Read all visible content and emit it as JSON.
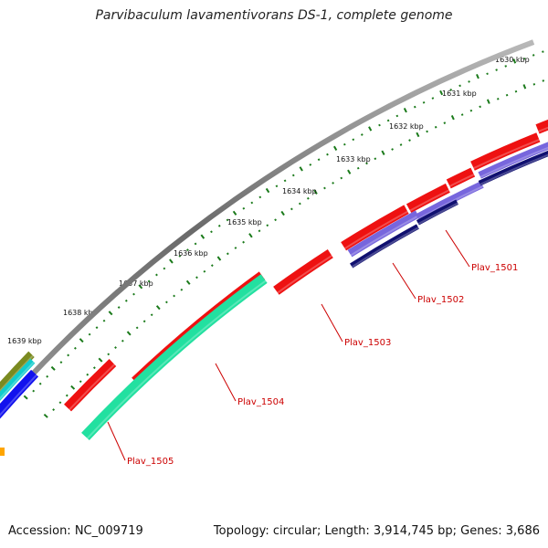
{
  "title": "Parvibaculum lavamentivorans DS-1, complete genome",
  "footer": {
    "accession": "Accession: NC_009719",
    "topology": "Topology: circular; Length: 3,914,745 bp; Genes: 3,686"
  },
  "ruler": {
    "labels": [
      "1630 kbp",
      "1631 kbp",
      "1632 kbp",
      "1633 kbp",
      "1634 kbp",
      "1635 kbp",
      "1636 kbp",
      "1637 kbp",
      "1638 kbp",
      "1639 kbp"
    ],
    "tick_color": "#1a7a1a"
  },
  "genes": [
    {
      "name": "Plav_1501",
      "color": "#5544cc"
    },
    {
      "name": "Plav_1502",
      "color": "#13137a"
    },
    {
      "name": "Plav_1503",
      "color": "#ee1111"
    },
    {
      "name": "Plav_1504",
      "color": "#ee1111"
    },
    {
      "name": "Plav_1505",
      "color": "#22e0a0"
    }
  ],
  "colors": {
    "backbone": "#808080",
    "gene_label": "#cc0000",
    "forward_cds": "#ee1111",
    "cyan_cds": "#22e0a0",
    "purple_cds": "#7766dd",
    "navy_cds": "#101070",
    "olive_cds": "#7a8a20",
    "teal_cds": "#11cccc",
    "blue_cds": "#1111ee",
    "orange_cds": "#ffa500"
  }
}
